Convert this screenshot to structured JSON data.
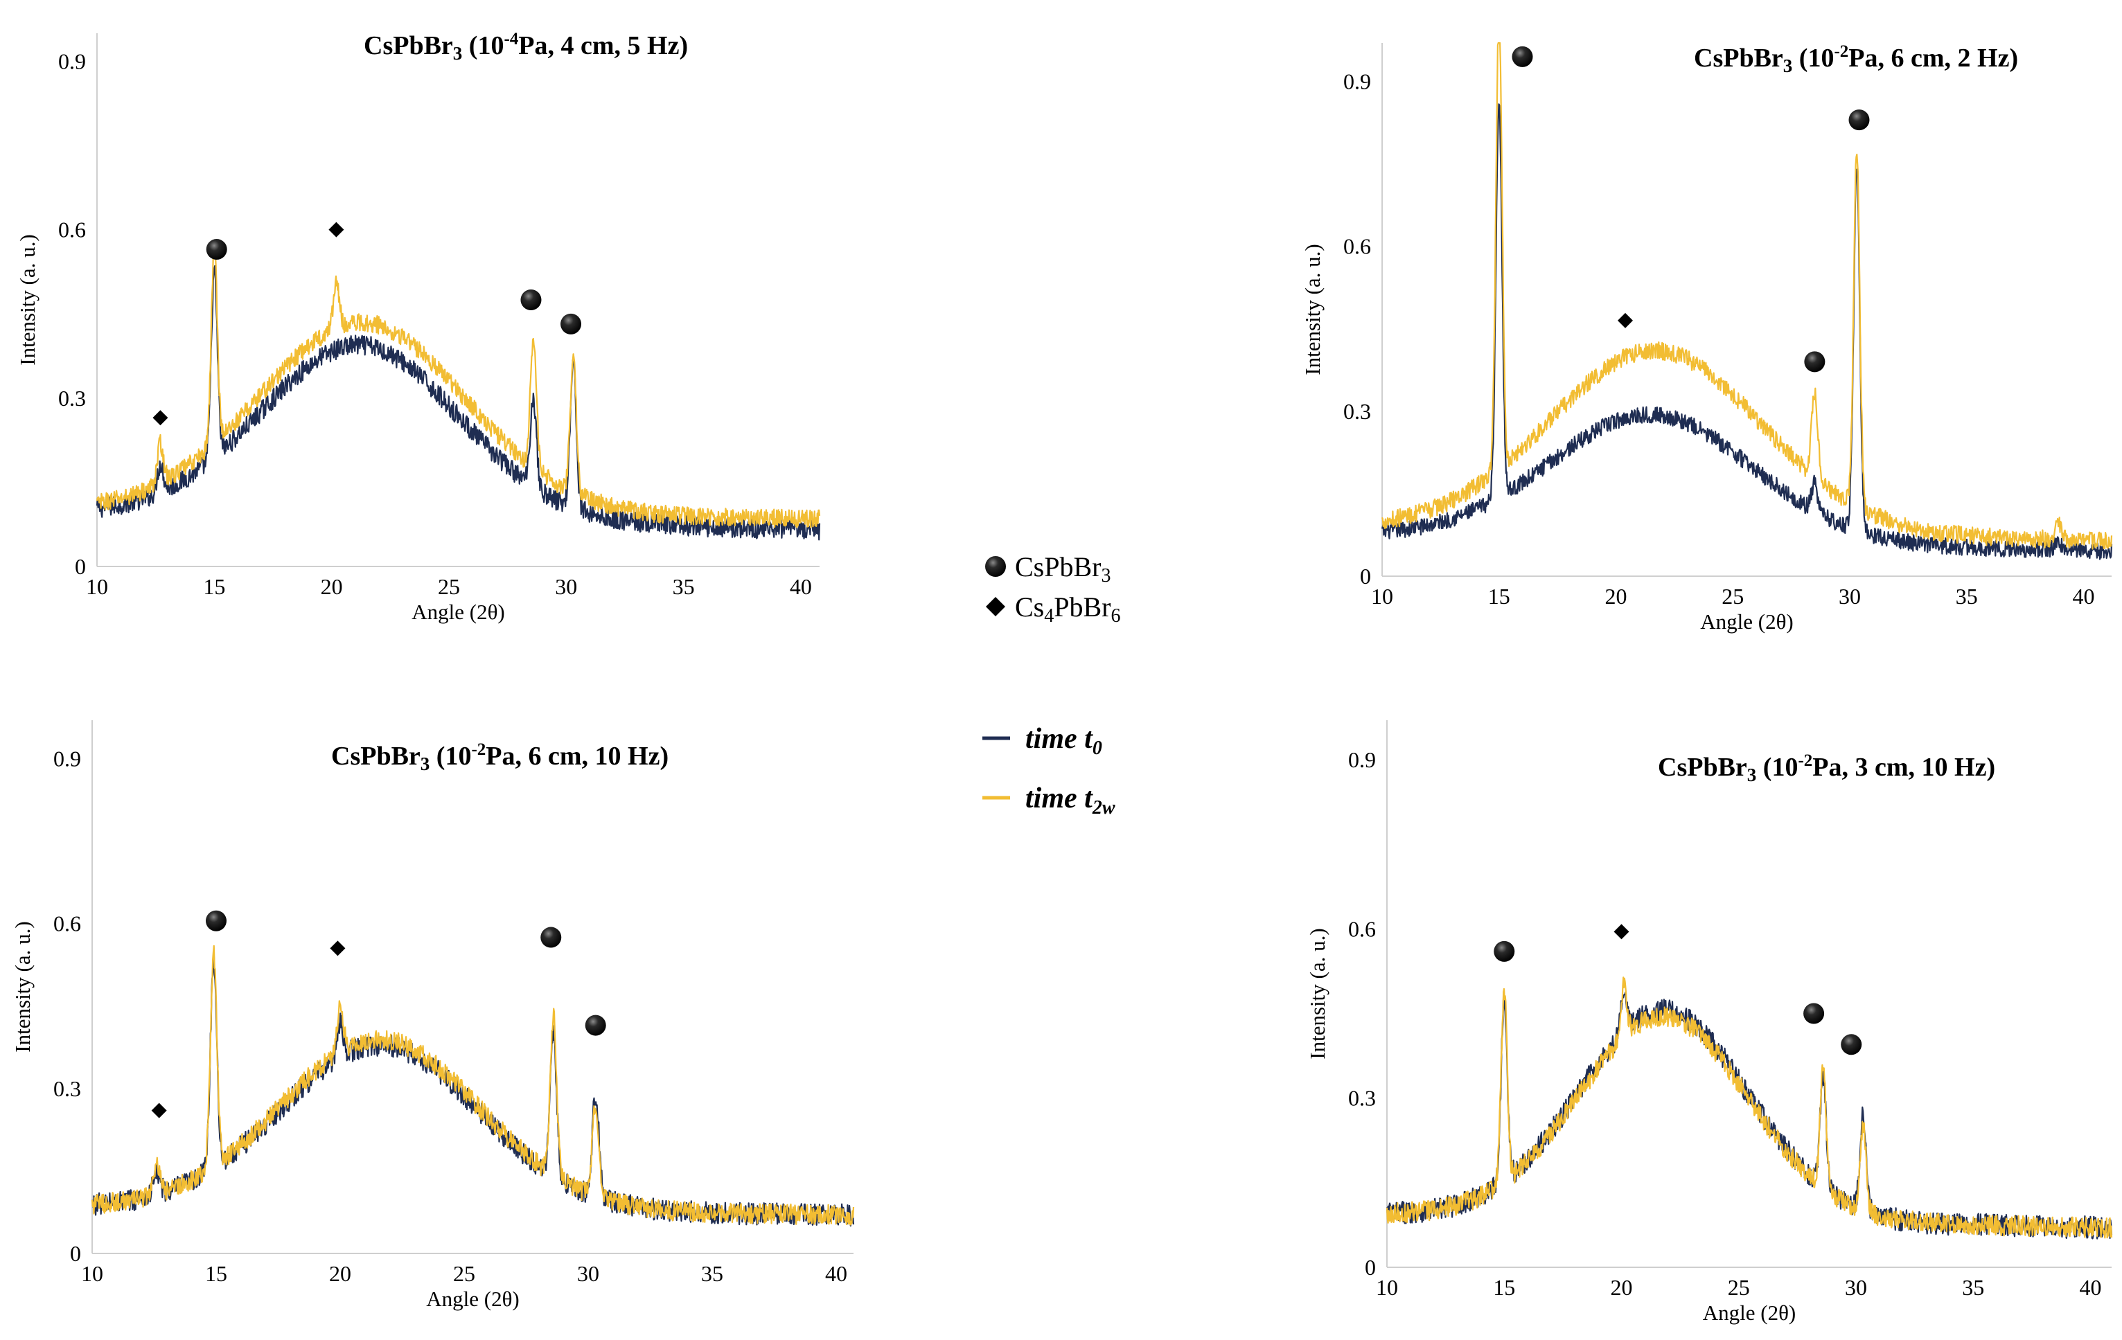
{
  "colors": {
    "t0": "#1f2d52",
    "t2w": "#f2bd33",
    "axis": "#cfcfcf"
  },
  "legend": {
    "markers": [
      {
        "name": "CsPbBr3",
        "base": "CsPbBr",
        "sub": "3",
        "symbol": "circle"
      },
      {
        "name": "Cs4PbBr6",
        "base": "Cs",
        "mid": "4",
        "rest": "PbBr",
        "sub": "6",
        "symbol": "diamond"
      }
    ],
    "lines": [
      {
        "label": "time t",
        "sub": "0",
        "color_key": "t0"
      },
      {
        "label": "time t",
        "sub": "2w",
        "color_key": "t2w"
      }
    ]
  },
  "chart_data": [
    {
      "id": "p1",
      "type": "line",
      "title": {
        "prefix": "CsPbBr",
        "sub": "3",
        "open": " (10",
        "sup": "-4",
        "rest": "Pa, 4 cm, 5 Hz)"
      },
      "xlabel": "Angle (2θ)",
      "ylabel": "Intensity (a. u.)",
      "xlim": [
        10,
        40.8
      ],
      "ylim": [
        0,
        0.95
      ],
      "xticks": [
        "10",
        "15",
        "20",
        "25",
        "30",
        "35",
        "40"
      ],
      "yticks": [
        "0",
        "0.3",
        "0.6",
        "0.9"
      ],
      "series": [
        {
          "name": "time t0",
          "start": 0.095,
          "end": 0.065,
          "hump": {
            "center": 21.2,
            "height": 0.31,
            "width": 4.2
          },
          "peaks": [
            [
              12.7,
              0.05
            ],
            [
              15.0,
              0.33
            ],
            [
              20.2,
              0.0
            ],
            [
              28.6,
              0.16
            ],
            [
              30.3,
              0.26
            ]
          ],
          "noise": 0.018
        },
        {
          "name": "time t2w",
          "start": 0.1,
          "end": 0.085,
          "hump": {
            "center": 21.3,
            "height": 0.34,
            "width": 4.4
          },
          "peaks": [
            [
              12.7,
              0.07
            ],
            [
              15.0,
              0.35
            ],
            [
              20.2,
              0.08
            ],
            [
              28.6,
              0.23
            ],
            [
              30.3,
              0.24
            ]
          ],
          "noise": 0.016
        }
      ],
      "markers": [
        {
          "symbol": "diamond",
          "x": 12.7,
          "y": 0.265
        },
        {
          "symbol": "circle",
          "x": 15.1,
          "y": 0.565
        },
        {
          "symbol": "diamond",
          "x": 20.2,
          "y": 0.6
        },
        {
          "symbol": "circle",
          "x": 28.5,
          "y": 0.475
        },
        {
          "symbol": "circle",
          "x": 30.2,
          "y": 0.432
        }
      ]
    },
    {
      "id": "p2",
      "type": "line",
      "title": {
        "prefix": "CsPbBr",
        "sub": "3",
        "open": " (10",
        "sup": "-2",
        "rest": "Pa, 6 cm, 2 Hz)"
      },
      "xlabel": "Angle (2θ)",
      "ylabel": "Intensity (a. u.)",
      "xlim": [
        10,
        41.2
      ],
      "ylim": [
        0,
        0.97
      ],
      "xticks": [
        "10",
        "15",
        "20",
        "25",
        "30",
        "35",
        "40"
      ],
      "yticks": [
        "0",
        "0.3",
        "0.6",
        "0.9"
      ],
      "series": [
        {
          "name": "time t0",
          "start": 0.075,
          "end": 0.045,
          "hump": {
            "center": 21.5,
            "height": 0.23,
            "width": 4.3
          },
          "peaks": [
            [
              15.0,
              0.72
            ],
            [
              28.5,
              0.05
            ],
            [
              30.3,
              0.66
            ],
            [
              38.9,
              0.02
            ]
          ],
          "noise": 0.015
        },
        {
          "name": "time t2w",
          "start": 0.09,
          "end": 0.065,
          "hump": {
            "center": 21.7,
            "height": 0.33,
            "width": 4.5
          },
          "peaks": [
            [
              15.0,
              0.84
            ],
            [
              28.5,
              0.15
            ],
            [
              30.3,
              0.65
            ],
            [
              38.9,
              0.03
            ]
          ],
          "noise": 0.016
        }
      ],
      "markers": [
        {
          "symbol": "circle",
          "x": 16.0,
          "y": 0.945
        },
        {
          "symbol": "diamond",
          "x": 20.4,
          "y": 0.465
        },
        {
          "symbol": "circle",
          "x": 28.5,
          "y": 0.39
        },
        {
          "symbol": "circle",
          "x": 30.4,
          "y": 0.83
        }
      ]
    },
    {
      "id": "p3",
      "type": "line",
      "title": {
        "prefix": "CsPbBr",
        "sub": "3",
        "open": " (10",
        "sup": "-2",
        "rest": "Pa, 6 cm, 10 Hz)"
      },
      "xlabel": "Angle (2θ)",
      "ylabel": "Intensity (a. u.)",
      "xlim": [
        10,
        40.7
      ],
      "ylim": [
        0,
        0.97
      ],
      "xticks": [
        "10",
        "15",
        "20",
        "25",
        "30",
        "35",
        "40"
      ],
      "yticks": [
        "0",
        "0.3",
        "0.6",
        "0.9"
      ],
      "series": [
        {
          "name": "time t0",
          "start": 0.085,
          "end": 0.07,
          "hump": {
            "center": 21.6,
            "height": 0.3,
            "width": 4.0
          },
          "peaks": [
            [
              12.6,
              0.04
            ],
            [
              14.9,
              0.38
            ],
            [
              20.0,
              0.06
            ],
            [
              28.6,
              0.26
            ],
            [
              30.3,
              0.19
            ]
          ],
          "noise": 0.02
        },
        {
          "name": "time t2w",
          "start": 0.085,
          "end": 0.07,
          "hump": {
            "center": 21.6,
            "height": 0.31,
            "width": 4.0
          },
          "peaks": [
            [
              12.6,
              0.05
            ],
            [
              14.9,
              0.39
            ],
            [
              20.0,
              0.08
            ],
            [
              28.6,
              0.29
            ],
            [
              30.3,
              0.17
            ]
          ],
          "noise": 0.018
        }
      ],
      "markers": [
        {
          "symbol": "diamond",
          "x": 12.7,
          "y": 0.26
        },
        {
          "symbol": "circle",
          "x": 15.0,
          "y": 0.605
        },
        {
          "symbol": "diamond",
          "x": 19.9,
          "y": 0.555
        },
        {
          "symbol": "circle",
          "x": 28.5,
          "y": 0.575
        },
        {
          "symbol": "circle",
          "x": 30.3,
          "y": 0.415
        }
      ]
    },
    {
      "id": "p4",
      "type": "line",
      "title": {
        "prefix": "CsPbBr",
        "sub": "3",
        "open": " (10",
        "sup": "-2",
        "rest": "Pa, 3 cm, 10 Hz)"
      },
      "xlabel": "Angle (2θ)",
      "ylabel": "Intensity (a. u.)",
      "xlim": [
        10,
        40.9
      ],
      "ylim": [
        0,
        0.97
      ],
      "xticks": [
        "10",
        "15",
        "20",
        "25",
        "30",
        "35",
        "40"
      ],
      "yticks": [
        "0",
        "0.3",
        "0.6",
        "0.9"
      ],
      "series": [
        {
          "name": "time t0",
          "start": 0.095,
          "end": 0.07,
          "hump": {
            "center": 21.8,
            "height": 0.37,
            "width": 3.6
          },
          "peaks": [
            [
              15.0,
              0.33
            ],
            [
              20.1,
              0.07
            ],
            [
              28.6,
              0.2
            ],
            [
              30.3,
              0.17
            ]
          ],
          "noise": 0.02
        },
        {
          "name": "time t2w",
          "start": 0.095,
          "end": 0.07,
          "hump": {
            "center": 21.8,
            "height": 0.36,
            "width": 3.6
          },
          "peaks": [
            [
              15.0,
              0.34
            ],
            [
              20.1,
              0.09
            ],
            [
              28.6,
              0.21
            ],
            [
              30.3,
              0.15
            ]
          ],
          "noise": 0.018
        }
      ],
      "markers": [
        {
          "symbol": "circle",
          "x": 15.0,
          "y": 0.56
        },
        {
          "symbol": "diamond",
          "x": 20.0,
          "y": 0.595
        },
        {
          "symbol": "circle",
          "x": 28.2,
          "y": 0.45
        },
        {
          "symbol": "circle",
          "x": 29.8,
          "y": 0.395
        }
      ]
    }
  ]
}
